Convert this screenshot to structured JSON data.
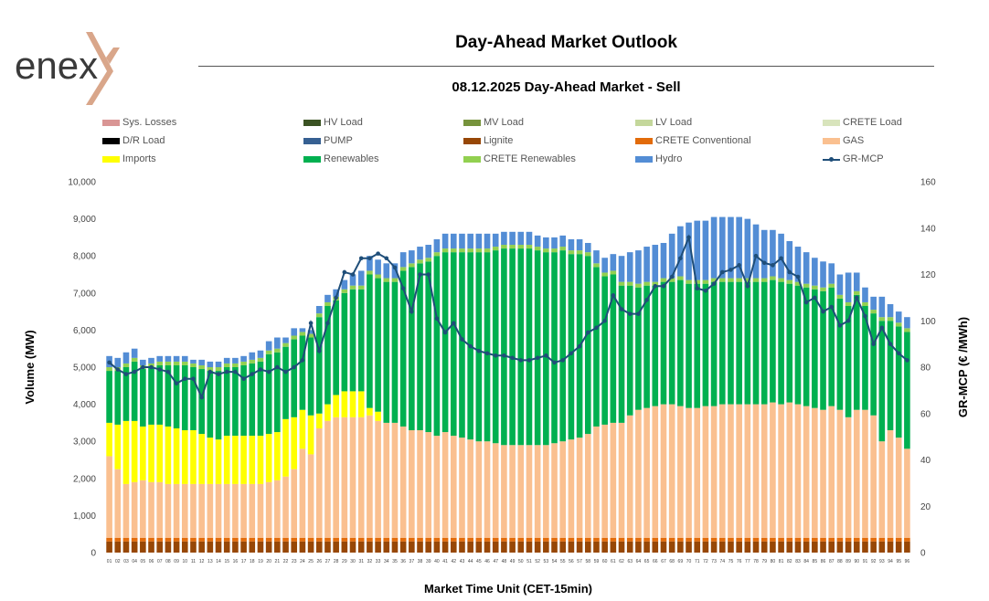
{
  "brand": {
    "logo_text": "enex",
    "logo_colors": {
      "text": "#3a3a3a",
      "mark": "#D9A68A"
    }
  },
  "header": {
    "title": "Day-Ahead Market Outlook",
    "subtitle": "08.12.2025  Day-Ahead Market - Sell"
  },
  "chart_data": {
    "type": "bar",
    "subtype": "stacked-bar-with-line",
    "title": "08.12.2025  Day-Ahead Market - Sell",
    "xlabel": "Market Time Unit (CET-15min)",
    "ylabel": "Volume (MW)",
    "y2label": "GR-MCP (€ /MWh)",
    "ylim": [
      0,
      10000
    ],
    "y2lim": [
      0,
      160
    ],
    "yticks": [
      "0",
      "1,000",
      "2,000",
      "3,000",
      "4,000",
      "5,000",
      "6,000",
      "7,000",
      "8,000",
      "9,000",
      "10,000"
    ],
    "y2ticks": [
      "0",
      "20",
      "40",
      "60",
      "80",
      "100",
      "120",
      "140",
      "160"
    ],
    "legend_position": "top",
    "categories": [
      "01",
      "02",
      "03",
      "04",
      "05",
      "06",
      "07",
      "08",
      "09",
      "10",
      "11",
      "12",
      "13",
      "14",
      "15",
      "16",
      "17",
      "18",
      "19",
      "20",
      "21",
      "22",
      "23",
      "24",
      "25",
      "26",
      "27",
      "28",
      "29",
      "30",
      "31",
      "32",
      "33",
      "34",
      "35",
      "36",
      "37",
      "38",
      "39",
      "40",
      "41",
      "42",
      "43",
      "44",
      "45",
      "46",
      "47",
      "48",
      "49",
      "50",
      "51",
      "52",
      "53",
      "54",
      "55",
      "56",
      "57",
      "58",
      "59",
      "60",
      "61",
      "62",
      "63",
      "64",
      "65",
      "66",
      "67",
      "68",
      "69",
      "70",
      "71",
      "72",
      "73",
      "74",
      "75",
      "76",
      "77",
      "78",
      "79",
      "80",
      "81",
      "82",
      "83",
      "84",
      "85",
      "86",
      "87",
      "88",
      "89",
      "90",
      "91",
      "92",
      "93",
      "94",
      "95",
      "96"
    ],
    "legend": [
      {
        "name": "Sys. Losses",
        "color": "#D99594"
      },
      {
        "name": "HV Load",
        "color": "#3B5323"
      },
      {
        "name": "MV Load",
        "color": "#76933C"
      },
      {
        "name": "LV Load",
        "color": "#C4D79B"
      },
      {
        "name": "CRETE Load",
        "color": "#D8E4BC"
      },
      {
        "name": "D/R Load",
        "color": "#000000"
      },
      {
        "name": "PUMP",
        "color": "#366092"
      },
      {
        "name": "Lignite",
        "color": "#974706"
      },
      {
        "name": "CRETE Conventional",
        "color": "#E26B0A"
      },
      {
        "name": "GAS",
        "color": "#FAC090"
      },
      {
        "name": "Imports",
        "color": "#FFFF00"
      },
      {
        "name": "Renewables",
        "color": "#00B050"
      },
      {
        "name": "CRETE Renewables",
        "color": "#92D050"
      },
      {
        "name": "Hydro",
        "color": "#538DD5"
      },
      {
        "name": "GR-MCP",
        "color": "#1F4E79",
        "line": true
      }
    ],
    "series": [
      {
        "name": "Lignite",
        "color": "#974706",
        "values": [
          300,
          300,
          300,
          300,
          300,
          300,
          300,
          300,
          300,
          300,
          300,
          300,
          300,
          300,
          300,
          300,
          300,
          300,
          300,
          300,
          300,
          300,
          300,
          300,
          300,
          300,
          300,
          300,
          300,
          300,
          300,
          300,
          300,
          300,
          300,
          300,
          300,
          300,
          300,
          300,
          300,
          300,
          300,
          300,
          300,
          300,
          300,
          300,
          300,
          300,
          300,
          300,
          300,
          300,
          300,
          300,
          300,
          300,
          300,
          300,
          300,
          300,
          300,
          300,
          300,
          300,
          300,
          300,
          300,
          300,
          300,
          300,
          300,
          300,
          300,
          300,
          300,
          300,
          300,
          300,
          300,
          300,
          300,
          300,
          300,
          300,
          300,
          300,
          300,
          300,
          300,
          300,
          300,
          300,
          300,
          300
        ]
      },
      {
        "name": "CRETE Conventional",
        "color": "#E26B0A",
        "values": [
          100,
          100,
          100,
          100,
          100,
          100,
          100,
          100,
          100,
          100,
          100,
          100,
          100,
          100,
          100,
          100,
          100,
          100,
          100,
          100,
          100,
          100,
          100,
          100,
          100,
          100,
          100,
          100,
          100,
          100,
          100,
          100,
          100,
          100,
          100,
          100,
          100,
          100,
          100,
          100,
          100,
          100,
          100,
          100,
          100,
          100,
          100,
          100,
          100,
          100,
          100,
          100,
          100,
          100,
          100,
          100,
          100,
          100,
          100,
          100,
          100,
          100,
          100,
          100,
          100,
          100,
          100,
          100,
          100,
          100,
          100,
          100,
          100,
          100,
          100,
          100,
          100,
          100,
          100,
          100,
          100,
          100,
          100,
          100,
          100,
          100,
          100,
          100,
          100,
          100,
          100,
          100,
          100,
          100,
          100,
          100
        ]
      },
      {
        "name": "GAS",
        "color": "#FAC090",
        "values": [
          2200,
          1850,
          1450,
          1500,
          1550,
          1500,
          1500,
          1450,
          1450,
          1450,
          1450,
          1450,
          1450,
          1450,
          1450,
          1450,
          1450,
          1450,
          1450,
          1500,
          1550,
          1650,
          1850,
          2400,
          2250,
          2950,
          3150,
          3250,
          3250,
          3250,
          3250,
          3300,
          3150,
          3100,
          3100,
          3000,
          2900,
          2900,
          2850,
          2750,
          2850,
          2750,
          2700,
          2650,
          2600,
          2600,
          2550,
          2500,
          2500,
          2500,
          2500,
          2500,
          2500,
          2550,
          2600,
          2650,
          2700,
          2800,
          3000,
          3050,
          3100,
          3100,
          3300,
          3450,
          3500,
          3550,
          3600,
          3600,
          3550,
          3500,
          3500,
          3550,
          3550,
          3600,
          3600,
          3600,
          3600,
          3600,
          3600,
          3650,
          3600,
          3650,
          3600,
          3550,
          3500,
          3450,
          3550,
          3450,
          3250,
          3450,
          3450,
          3300,
          2600,
          2900,
          2700,
          2400
        ]
      },
      {
        "name": "Imports",
        "color": "#FFFF00",
        "values": [
          900,
          1200,
          1700,
          1650,
          1450,
          1550,
          1550,
          1550,
          1500,
          1450,
          1450,
          1350,
          1250,
          1200,
          1300,
          1300,
          1300,
          1300,
          1300,
          1300,
          1300,
          1550,
          1400,
          1050,
          1050,
          400,
          450,
          600,
          700,
          700,
          700,
          200,
          250,
          0,
          0,
          0,
          0,
          0,
          0,
          0,
          0,
          0,
          0,
          0,
          0,
          0,
          0,
          0,
          0,
          0,
          0,
          0,
          0,
          0,
          0,
          0,
          0,
          0,
          0,
          0,
          0,
          0,
          0,
          0,
          0,
          0,
          0,
          0,
          0,
          0,
          0,
          0,
          0,
          0,
          0,
          0,
          0,
          0,
          0,
          0,
          0,
          0,
          0,
          0,
          0,
          0,
          0,
          0,
          0,
          0,
          0,
          0,
          0,
          0,
          0,
          0
        ]
      },
      {
        "name": "Renewables",
        "color": "#00B050",
        "values": [
          1400,
          1450,
          1450,
          1600,
          1550,
          1550,
          1600,
          1650,
          1700,
          1750,
          1700,
          1750,
          1800,
          1850,
          1850,
          1850,
          1900,
          1950,
          2000,
          2150,
          2150,
          1950,
          2100,
          2000,
          2100,
          2600,
          2650,
          2550,
          2650,
          2750,
          2750,
          3600,
          3600,
          3800,
          3800,
          4200,
          4400,
          4500,
          4600,
          4850,
          4850,
          4950,
          5000,
          5050,
          5100,
          5100,
          5200,
          5300,
          5300,
          5300,
          5300,
          5250,
          5200,
          5150,
          5150,
          5000,
          4950,
          4800,
          4300,
          4000,
          4000,
          3700,
          3500,
          3300,
          3300,
          3250,
          3300,
          3300,
          3400,
          3350,
          3350,
          3300,
          3350,
          3300,
          3300,
          3300,
          3300,
          3300,
          3300,
          3300,
          3300,
          3200,
          3200,
          3200,
          3200,
          3200,
          3200,
          3000,
          3000,
          3100,
          2800,
          2750,
          3250,
          2950,
          3000,
          3150
        ]
      },
      {
        "name": "CRETE Renewables",
        "color": "#92D050",
        "values": [
          100,
          100,
          100,
          100,
          100,
          100,
          100,
          100,
          100,
          100,
          100,
          100,
          100,
          100,
          100,
          100,
          100,
          100,
          100,
          100,
          100,
          100,
          100,
          100,
          100,
          100,
          100,
          100,
          100,
          100,
          100,
          100,
          100,
          100,
          100,
          100,
          100,
          100,
          100,
          100,
          100,
          100,
          100,
          100,
          100,
          100,
          100,
          100,
          100,
          100,
          100,
          100,
          100,
          100,
          100,
          100,
          100,
          100,
          100,
          100,
          100,
          100,
          100,
          100,
          100,
          100,
          100,
          100,
          100,
          100,
          100,
          100,
          100,
          100,
          100,
          100,
          100,
          100,
          100,
          100,
          100,
          100,
          100,
          100,
          100,
          100,
          100,
          100,
          100,
          100,
          100,
          100,
          100,
          100,
          100,
          100
        ]
      },
      {
        "name": "Hydro",
        "color": "#538DD5",
        "values": [
          300,
          250,
          300,
          250,
          150,
          150,
          150,
          150,
          150,
          150,
          100,
          150,
          150,
          150,
          150,
          150,
          150,
          200,
          200,
          250,
          300,
          150,
          200,
          100,
          100,
          200,
          200,
          200,
          250,
          300,
          400,
          400,
          400,
          400,
          400,
          400,
          350,
          350,
          350,
          350,
          400,
          400,
          400,
          400,
          400,
          400,
          350,
          350,
          350,
          350,
          350,
          300,
          300,
          300,
          300,
          300,
          300,
          250,
          350,
          400,
          450,
          700,
          800,
          900,
          950,
          1000,
          950,
          1200,
          1350,
          1550,
          1600,
          1600,
          1650,
          1650,
          1650,
          1650,
          1600,
          1450,
          1300,
          1250,
          1200,
          1050,
          950,
          850,
          750,
          700,
          550,
          550,
          800,
          500,
          400,
          350,
          550,
          350,
          300,
          300
        ]
      }
    ],
    "line": {
      "name": "GR-MCP",
      "color": "#1F4E79",
      "axis": "right",
      "values": [
        82,
        79,
        77,
        78,
        80,
        80,
        79,
        78,
        73,
        75,
        75,
        67,
        78,
        77,
        78,
        78,
        75,
        77,
        79,
        78,
        80,
        78,
        80,
        83,
        99,
        87,
        99,
        110,
        121,
        120,
        127,
        127,
        129,
        127,
        123,
        114,
        104,
        120,
        120,
        101,
        95,
        99,
        92,
        89,
        87,
        86,
        85,
        85,
        84,
        83,
        83,
        84,
        85,
        82,
        83,
        86,
        89,
        95,
        97,
        100,
        111,
        105,
        103,
        103,
        109,
        115,
        115,
        119,
        127,
        136,
        114,
        113,
        116,
        121,
        122,
        124,
        115,
        128,
        125,
        124,
        127,
        121,
        119,
        108,
        110,
        104,
        106,
        98,
        100,
        110,
        102,
        90,
        97,
        90,
        86,
        83
      ]
    }
  }
}
